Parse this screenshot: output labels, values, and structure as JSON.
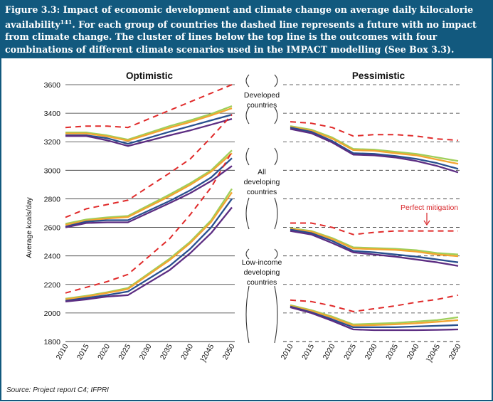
{
  "header": {
    "lead": "Figure 3.3: Impact of economic development and climate change on average daily kilocalorie availability",
    "sup": "141",
    "rest": ". For each group of countries the dashed line represents a future with no impact from climate change. The cluster of lines below the top line is the outcomes with four combinations of different climate scenarios used in the IMPACT modelling (See Box 3.3)."
  },
  "source": "Source: Project report C4; IFPRI",
  "chart_data": {
    "type": "line",
    "ylabel": "Average kcals/day",
    "ylim": [
      1800,
      3600
    ],
    "yticks": [
      "3600",
      "3400",
      "3200",
      "3000",
      "2800",
      "2600",
      "2400",
      "2200",
      "2000",
      "1800"
    ],
    "x": [
      "2010",
      "2015",
      "2020",
      "2025",
      "2030",
      "2035",
      "2040",
      "2045",
      "2050"
    ],
    "x_tick_labels": [
      "2010",
      "2015",
      "2020",
      "2025",
      "2030",
      "2035",
      "2040",
      "}2045",
      "2050"
    ],
    "group_labels": [
      {
        "lines": [
          "Developed",
          "countries"
        ]
      },
      {
        "lines": [
          "All",
          "developing",
          "countries"
        ]
      },
      {
        "lines": [
          "Low-income",
          "developing",
          "countries"
        ]
      }
    ],
    "annotation": "Perfect mitigation",
    "series_colors": {
      "dashed": "#e02a2a",
      "green": "#9ecf5a",
      "orange": "#f3a531",
      "blue": "#284f8e",
      "purple": "#5c2d82"
    },
    "panels": [
      {
        "title": "Optimistic",
        "grid": "solid",
        "x_plot": [
          "2010",
          "2015",
          "2020",
          "2025",
          "2035",
          "2040",
          "2045",
          "2050"
        ],
        "groups": [
          {
            "dashed": [
              3300,
              3310,
              3310,
              3300,
              3420,
              3480,
              3540,
              3600
            ],
            "green": [
              3265,
              3265,
              3245,
              3215,
              3310,
              3350,
              3395,
              3450
            ],
            "orange": [
              3258,
              3258,
              3238,
              3208,
              3298,
              3338,
              3385,
              3435
            ],
            "blue": [
              3245,
              3245,
              3225,
              3185,
              3270,
              3310,
              3350,
              3390
            ],
            "purple": [
              3240,
              3240,
              3210,
              3170,
              3245,
              3280,
              3320,
              3360
            ]
          },
          {
            "dashed": [
              2670,
              2730,
              2760,
              2790,
              2980,
              3080,
              3230,
              3390
            ],
            "green": [
              2625,
              2655,
              2670,
              2680,
              2830,
              2910,
              3000,
              3140
            ],
            "orange": [
              2617,
              2647,
              2662,
              2672,
              2818,
              2898,
              2990,
              3120
            ],
            "blue": [
              2605,
              2640,
              2650,
              2650,
              2785,
              2860,
              2950,
              3085
            ],
            "purple": [
              2600,
              2630,
              2635,
              2635,
              2770,
              2840,
              2925,
              3030
            ]
          },
          {
            "dashed": [
              2140,
              2180,
              2220,
              2270,
              2520,
              2690,
              2880,
              3130
            ],
            "green": [
              2100,
              2120,
              2145,
              2175,
              2380,
              2500,
              2650,
              2870
            ],
            "orange": [
              2095,
              2115,
              2140,
              2168,
              2370,
              2490,
              2638,
              2845
            ],
            "blue": [
              2085,
              2105,
              2125,
              2150,
              2330,
              2450,
              2600,
              2800
            ],
            "purple": [
              2080,
              2095,
              2115,
              2125,
              2300,
              2420,
              2560,
              2740
            ]
          }
        ]
      },
      {
        "title": "Pessimistic",
        "grid": "dashed",
        "x_plot": [
          "2010",
          "2015",
          "2020",
          "2025",
          "2030",
          "2035",
          "2040",
          "2045",
          "2050"
        ],
        "groups": [
          {
            "dashed": [
              3340,
              3330,
              3300,
              3240,
              3250,
              3250,
              3240,
              3220,
              3210
            ],
            "green": [
              3310,
              3285,
              3230,
              3150,
              3145,
              3130,
              3115,
              3090,
              3065
            ],
            "orange": [
              3305,
              3278,
              3222,
              3142,
              3137,
              3120,
              3105,
              3075,
              3045
            ],
            "blue": [
              3300,
              3270,
              3205,
              3120,
              3115,
              3100,
              3080,
              3050,
              3010
            ],
            "purple": [
              3290,
              3260,
              3195,
              3110,
              3105,
              3090,
              3065,
              3030,
              2985
            ]
          },
          {
            "dashed": [
              2630,
              2630,
              2600,
              2550,
              2565,
              2575,
              2575,
              2575,
              2575
            ],
            "green": [
              2595,
              2575,
              2525,
              2460,
              2455,
              2450,
              2440,
              2420,
              2410
            ],
            "orange": [
              2590,
              2570,
              2518,
              2452,
              2447,
              2442,
              2430,
              2410,
              2398
            ],
            "blue": [
              2585,
              2560,
              2505,
              2435,
              2425,
              2410,
              2395,
              2375,
              2355
            ],
            "purple": [
              2575,
              2550,
              2490,
              2425,
              2410,
              2395,
              2375,
              2355,
              2330
            ]
          },
          {
            "dashed": [
              2090,
              2080,
              2050,
              2010,
              2030,
              2050,
              2075,
              2095,
              2125
            ],
            "green": [
              2055,
              2020,
              1975,
              1920,
              1925,
              1930,
              1940,
              1950,
              1970
            ],
            "orange": [
              2050,
              2015,
              1968,
              1912,
              1915,
              1920,
              1928,
              1938,
              1950
            ],
            "blue": [
              2045,
              2005,
              1955,
              1900,
              1900,
              1900,
              1905,
              1910,
              1915
            ],
            "purple": [
              2040,
              2000,
              1945,
              1885,
              1880,
              1880,
              1880,
              1882,
              1885
            ]
          }
        ]
      }
    ]
  }
}
